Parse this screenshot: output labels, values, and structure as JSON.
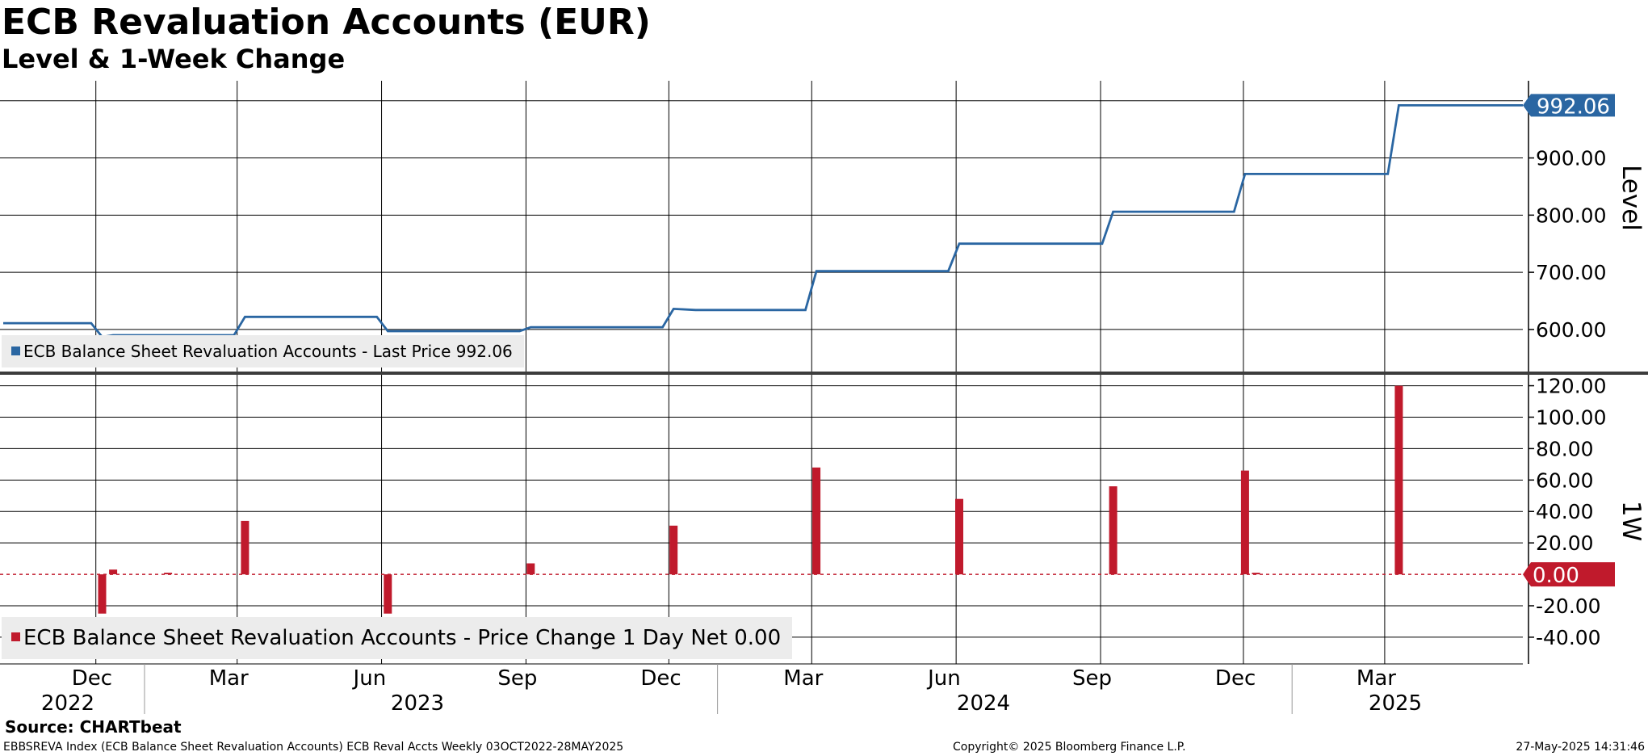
{
  "title": "ECB Revaluation Accounts (EUR)",
  "subtitle": "Level & 1-Week Change",
  "source": "Source: CHARTbeat",
  "footer": {
    "left": "EBBSREVA Index (ECB Balance Sheet Revaluation Accounts) ECB Reval Accts  Weekly 03OCT2022-28MAY2025",
    "center": "Copyright© 2025 Bloomberg Finance L.P.",
    "right": "27-May-2025 14:31:46"
  },
  "colors": {
    "level_line": "#2a66a2",
    "change_bar": "#c01a2c",
    "grid": "#000000",
    "legend_bg": "#ececec"
  },
  "chart_data": [
    {
      "type": "line",
      "panel": "Level",
      "ylabel": "Level",
      "ylim": [
        525,
        1035
      ],
      "yticks": [
        "600.00",
        "700.00",
        "800.00",
        "900.00"
      ],
      "last_value_label": "992.06",
      "legend": "ECB Balance Sheet Revaluation Accounts - Last Price 992.06",
      "series": [
        {
          "name": "ECB Balance Sheet Revaluation Accounts - Last Price",
          "x": [
            "2022-10-03",
            "2022-11-28",
            "2022-12-05",
            "2022-12-12",
            "2023-02-27",
            "2023-03-06",
            "2023-03-13",
            "2023-05-29",
            "2023-06-05",
            "2023-08-28",
            "2023-09-04",
            "2023-11-27",
            "2023-12-04",
            "2023-12-18",
            "2024-02-26",
            "2024-03-04",
            "2024-05-27",
            "2024-06-03",
            "2024-09-02",
            "2024-09-09",
            "2024-11-25",
            "2024-12-02",
            "2025-03-03",
            "2025-03-10",
            "2025-05-28"
          ],
          "y": [
            611,
            611,
            587,
            590,
            590,
            622,
            622,
            622,
            597,
            597,
            604,
            604,
            636,
            634,
            634,
            702,
            702,
            750,
            750,
            806,
            806,
            872,
            872,
            992.06,
            992.06
          ]
        }
      ],
      "x_tick_labels": [
        "Dec",
        "Mar",
        "Jun",
        "Sep",
        "Dec",
        "Mar",
        "Jun",
        "Sep",
        "Dec",
        "Mar"
      ],
      "year_labels": [
        "2022",
        "2023",
        "2024",
        "2025"
      ],
      "grid": true,
      "legend_position": "bottom-left"
    },
    {
      "type": "bar",
      "panel": "1W",
      "ylabel": "1W",
      "ylim": [
        -57,
        128
      ],
      "yticks": [
        "120.00",
        "100.00",
        "80.00",
        "60.00",
        "40.00",
        "20.00",
        "-20.00",
        "-40.00"
      ],
      "last_value_label": "0.00",
      "legend": "ECB Balance Sheet Revaluation Accounts - Price Change 1 Day Net 0.00",
      "series": [
        {
          "name": "ECB Balance Sheet Revaluation Accounts - Price Change 1 Day Net",
          "x": [
            "2022-12-05",
            "2022-12-12",
            "2023-01-16",
            "2023-03-06",
            "2023-06-05",
            "2023-09-04",
            "2023-12-04",
            "2024-03-04",
            "2024-06-03",
            "2024-09-09",
            "2024-12-02",
            "2024-12-09",
            "2025-03-10"
          ],
          "y": [
            -25,
            3,
            1,
            34,
            -25,
            7,
            31,
            68,
            48,
            56,
            66,
            1,
            120
          ]
        }
      ],
      "grid": true,
      "legend_position": "bottom-left"
    }
  ]
}
